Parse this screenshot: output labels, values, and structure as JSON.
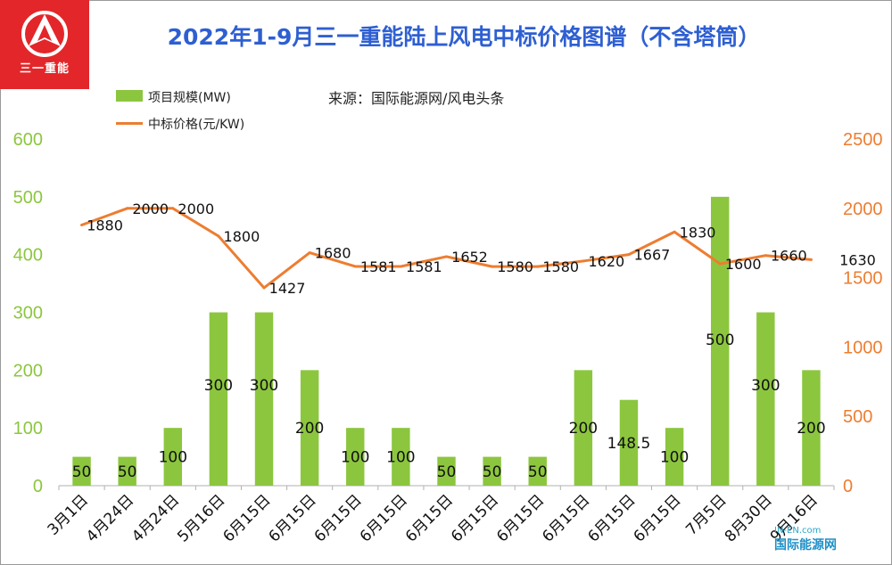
{
  "header": {
    "title": "2022年1-9月三一重能陆上风电中标价格图谱（不含塔筒）",
    "logo_text": "三一重能",
    "source": "来源：国际能源网/风电头条",
    "watermark_url": "IN-EN.com",
    "watermark_text": "国际能源网"
  },
  "legend": {
    "bar_label": "项目规模(MW)",
    "line_label": "中标价格(元/KW)"
  },
  "colors": {
    "bar": "#8cc63f",
    "line": "#ed7d31",
    "left_axis": "#8cc63f",
    "right_axis": "#ed7d31",
    "title": "#2e5fd2"
  },
  "chart_data": {
    "type": "bar",
    "title": "2022年1-9月三一重能陆上风电中标价格图谱（不含塔筒）",
    "categories": [
      "3月1日",
      "4月24日",
      "4月24日",
      "5月16日",
      "6月15日",
      "6月15日",
      "6月15日",
      "6月15日",
      "6月15日",
      "6月15日",
      "6月15日",
      "6月15日",
      "6月15日",
      "6月15日",
      "7月5日",
      "8月30日",
      "9月16日"
    ],
    "series": [
      {
        "name": "项目规模(MW)",
        "type": "bar",
        "axis": "left",
        "values": [
          50,
          50,
          100,
          300,
          300,
          200,
          100,
          100,
          50,
          50,
          50,
          200,
          148.5,
          100,
          500,
          300,
          200
        ]
      },
      {
        "name": "中标价格(元/KW)",
        "type": "line",
        "axis": "right",
        "values": [
          1880,
          2000,
          2000,
          1800,
          1427,
          1680,
          1581,
          1581,
          1652,
          1580,
          1580,
          1620,
          1667,
          1830,
          1600,
          1660,
          1630
        ]
      }
    ],
    "y_left": {
      "ylim": [
        0,
        600
      ],
      "ticks": [
        0,
        100,
        200,
        300,
        400,
        500,
        600
      ]
    },
    "y_right": {
      "ylim": [
        0,
        2500
      ],
      "ticks": [
        0,
        500,
        1000,
        1500,
        2000,
        2500
      ]
    },
    "bar_labels": [
      "50",
      "50",
      "100",
      "300",
      "300",
      "200",
      "100",
      "100",
      "50",
      "50",
      "50",
      "200",
      "148.5",
      "100",
      "500",
      "300",
      "200"
    ],
    "line_labels": [
      "1880",
      "2000",
      "2000",
      "1800",
      "1427",
      "1680",
      "1581",
      "1581",
      "1652",
      "1580",
      "1580",
      "1620",
      "1667",
      "1830",
      "1600",
      "1660",
      "1630"
    ],
    "grid": false,
    "legend_position": "top-left"
  }
}
